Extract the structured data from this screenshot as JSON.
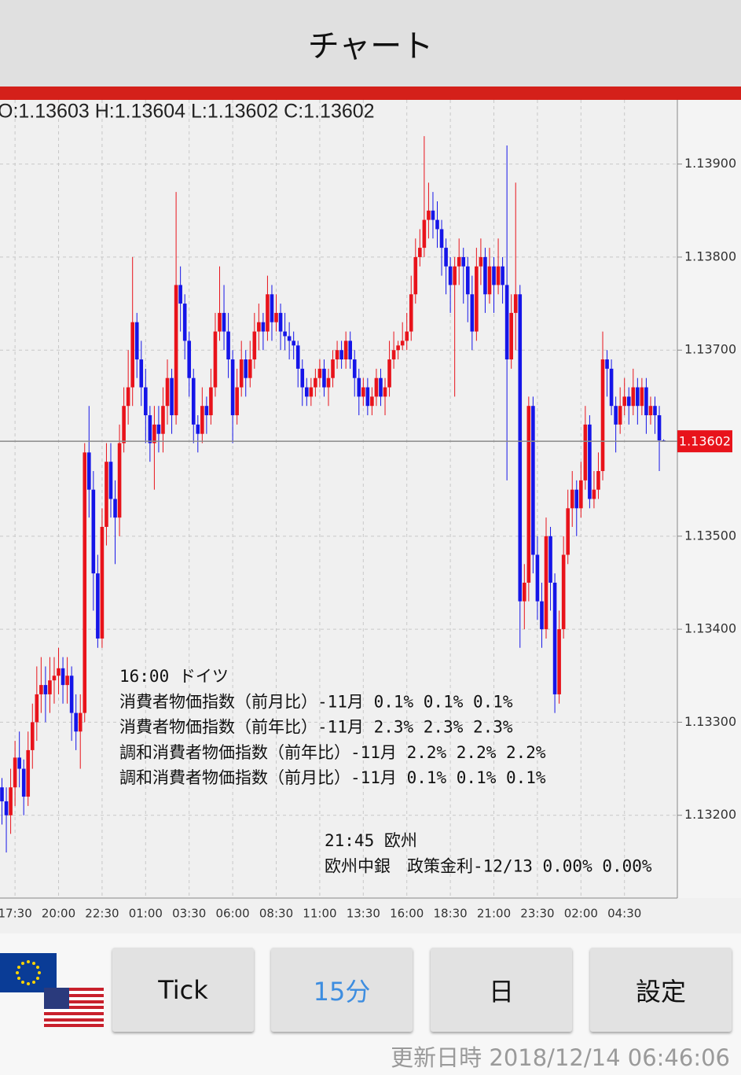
{
  "header": {
    "title": "チャート"
  },
  "chart_data": {
    "type": "candlestick",
    "ohlc_label": "O:1.13603 H:1.13604 L:1.13602 C:1.13602",
    "up_color": "#e8131b",
    "down_color": "#1515e8",
    "ylim": [
      1.13111,
      1.13969
    ],
    "yticks": [
      {
        "value": 1.132,
        "label": "1.13200"
      },
      {
        "value": 1.133,
        "label": "1.13300"
      },
      {
        "value": 1.134,
        "label": "1.13400"
      },
      {
        "value": 1.135,
        "label": "1.13500"
      },
      {
        "value": 1.137,
        "label": "1.13700"
      },
      {
        "value": 1.138,
        "label": "1.13800"
      },
      {
        "value": 1.139,
        "label": "1.13900"
      }
    ],
    "grid": true,
    "current": {
      "value": 1.13602,
      "label": "1.13602"
    },
    "categories": [
      null,
      null,
      null,
      "17:30",
      null,
      null,
      null,
      null,
      null,
      null,
      null,
      null,
      null,
      "20:00",
      null,
      null,
      null,
      null,
      null,
      null,
      null,
      null,
      null,
      "22:30",
      null,
      null,
      null,
      null,
      null,
      null,
      null,
      null,
      null,
      "01:00",
      null,
      null,
      null,
      null,
      null,
      null,
      null,
      null,
      null,
      "03:30",
      null,
      null,
      null,
      null,
      null,
      null,
      null,
      null,
      null,
      "06:00",
      null,
      null,
      null,
      null,
      null,
      null,
      null,
      null,
      null,
      "08:30",
      null,
      null,
      null,
      null,
      null,
      null,
      null,
      null,
      null,
      "11:00",
      null,
      null,
      null,
      null,
      null,
      null,
      null,
      null,
      null,
      "13:30",
      null,
      null,
      null,
      null,
      null,
      null,
      null,
      null,
      null,
      "16:00",
      null,
      null,
      null,
      null,
      null,
      null,
      null,
      null,
      null,
      "18:30",
      null,
      null,
      null,
      null,
      null,
      null,
      null,
      null,
      null,
      "21:00",
      null,
      null,
      null,
      null,
      null,
      null,
      null,
      null,
      null,
      "23:30",
      null,
      null,
      null,
      null,
      null,
      null,
      null,
      null,
      null,
      "02:00",
      null,
      null,
      null,
      null,
      null,
      null,
      null,
      null,
      null,
      "04:30",
      null,
      null,
      null,
      null,
      null,
      null,
      null,
      null,
      null
    ],
    "candles": [
      [
        1.1323,
        1.1324,
        1.1319,
        1.13215
      ],
      [
        1.13215,
        1.1323,
        1.1316,
        1.132
      ],
      [
        1.132,
        1.1325,
        1.1318,
        1.1323
      ],
      [
        1.1323,
        1.1328,
        1.1321,
        1.13262
      ],
      [
        1.13262,
        1.1329,
        1.1323,
        1.1325
      ],
      [
        1.1325,
        1.1326,
        1.132,
        1.1322
      ],
      [
        1.1322,
        1.1329,
        1.1321,
        1.1327
      ],
      [
        1.1327,
        1.1332,
        1.1325,
        1.133
      ],
      [
        1.133,
        1.1336,
        1.1328,
        1.1333
      ],
      [
        1.1333,
        1.1337,
        1.1331,
        1.1334
      ],
      [
        1.1334,
        1.1336,
        1.133,
        1.1333
      ],
      [
        1.1333,
        1.1337,
        1.1331,
        1.13345
      ],
      [
        1.13345,
        1.1337,
        1.1332,
        1.1335
      ],
      [
        1.1335,
        1.1338,
        1.1333,
        1.13358
      ],
      [
        1.13358,
        1.1337,
        1.1332,
        1.1334
      ],
      [
        1.1334,
        1.1337,
        1.1332,
        1.1335
      ],
      [
        1.1335,
        1.1336,
        1.1328,
        1.1331
      ],
      [
        1.1331,
        1.1333,
        1.1327,
        1.1329
      ],
      [
        1.1329,
        1.1333,
        1.1325,
        1.1331
      ],
      [
        1.1331,
        1.136,
        1.133,
        1.1359
      ],
      [
        1.1359,
        1.1364,
        1.1352,
        1.1355
      ],
      [
        1.1355,
        1.1357,
        1.1342,
        1.1346
      ],
      [
        1.1346,
        1.1348,
        1.1338,
        1.1339
      ],
      [
        1.1339,
        1.1353,
        1.1338,
        1.1351
      ],
      [
        1.1351,
        1.136,
        1.1349,
        1.1358
      ],
      [
        1.1358,
        1.136,
        1.1352,
        1.1354
      ],
      [
        1.1354,
        1.1356,
        1.1347,
        1.1352
      ],
      [
        1.1352,
        1.1362,
        1.135,
        1.136
      ],
      [
        1.136,
        1.1366,
        1.1359,
        1.1364
      ],
      [
        1.1364,
        1.137,
        1.1362,
        1.1366
      ],
      [
        1.1366,
        1.138,
        1.1364,
        1.1373
      ],
      [
        1.1373,
        1.1374,
        1.1367,
        1.1369
      ],
      [
        1.1369,
        1.1371,
        1.1364,
        1.1366
      ],
      [
        1.1366,
        1.1368,
        1.136,
        1.1363
      ],
      [
        1.1363,
        1.1364,
        1.1358,
        1.136
      ],
      [
        1.136,
        1.1364,
        1.1355,
        1.1362
      ],
      [
        1.1362,
        1.1364,
        1.1359,
        1.1361
      ],
      [
        1.1361,
        1.1366,
        1.1359,
        1.1364
      ],
      [
        1.1364,
        1.1369,
        1.1362,
        1.1367
      ],
      [
        1.1367,
        1.1368,
        1.1361,
        1.1363
      ],
      [
        1.1363,
        1.1387,
        1.1362,
        1.1377
      ],
      [
        1.1377,
        1.1379,
        1.1372,
        1.1375
      ],
      [
        1.1375,
        1.1376,
        1.1369,
        1.1371
      ],
      [
        1.1371,
        1.1372,
        1.1365,
        1.1367
      ],
      [
        1.1367,
        1.1368,
        1.136,
        1.1362
      ],
      [
        1.1362,
        1.1363,
        1.1359,
        1.1361
      ],
      [
        1.1361,
        1.1366,
        1.136,
        1.1364
      ],
      [
        1.1364,
        1.1365,
        1.1361,
        1.1363
      ],
      [
        1.1363,
        1.1368,
        1.1362,
        1.1366
      ],
      [
        1.1366,
        1.1374,
        1.1365,
        1.1372
      ],
      [
        1.1372,
        1.1379,
        1.1371,
        1.1374
      ],
      [
        1.1374,
        1.1377,
        1.137,
        1.1372
      ],
      [
        1.1372,
        1.1374,
        1.1367,
        1.1369
      ],
      [
        1.1369,
        1.137,
        1.136,
        1.1363
      ],
      [
        1.1363,
        1.1368,
        1.1362,
        1.1366
      ],
      [
        1.1366,
        1.1371,
        1.1365,
        1.1369
      ],
      [
        1.1369,
        1.137,
        1.1365,
        1.1367
      ],
      [
        1.1367,
        1.1371,
        1.1366,
        1.1369
      ],
      [
        1.1369,
        1.1374,
        1.1368,
        1.1372
      ],
      [
        1.1372,
        1.1375,
        1.137,
        1.1373
      ],
      [
        1.1373,
        1.1374,
        1.137,
        1.1372
      ],
      [
        1.1372,
        1.1378,
        1.1371,
        1.1376
      ],
      [
        1.1376,
        1.1377,
        1.1371,
        1.1373
      ],
      [
        1.1373,
        1.1376,
        1.1372,
        1.1374
      ],
      [
        1.1374,
        1.1375,
        1.137,
        1.1372
      ],
      [
        1.1372,
        1.1374,
        1.137,
        1.13715
      ],
      [
        1.13715,
        1.1373,
        1.1369,
        1.1371
      ],
      [
        1.1371,
        1.1372,
        1.1369,
        1.13705
      ],
      [
        1.13705,
        1.1371,
        1.1366,
        1.1368
      ],
      [
        1.1368,
        1.1369,
        1.1364,
        1.1366
      ],
      [
        1.1366,
        1.1367,
        1.1364,
        1.1365
      ],
      [
        1.1365,
        1.1367,
        1.1364,
        1.1366
      ],
      [
        1.1366,
        1.1368,
        1.1365,
        1.1367
      ],
      [
        1.1367,
        1.1369,
        1.1366,
        1.1368
      ],
      [
        1.1368,
        1.1369,
        1.1365,
        1.1366
      ],
      [
        1.1366,
        1.1368,
        1.1364,
        1.1367
      ],
      [
        1.1367,
        1.137,
        1.1366,
        1.1369
      ],
      [
        1.1369,
        1.1371,
        1.1368,
        1.137
      ],
      [
        1.137,
        1.1371,
        1.1368,
        1.1369
      ],
      [
        1.1369,
        1.1372,
        1.1368,
        1.1371
      ],
      [
        1.1371,
        1.1372,
        1.1368,
        1.1369
      ],
      [
        1.1369,
        1.137,
        1.1365,
        1.1367
      ],
      [
        1.1367,
        1.1368,
        1.1363,
        1.1365
      ],
      [
        1.1365,
        1.1367,
        1.1364,
        1.1366
      ],
      [
        1.1366,
        1.1367,
        1.1363,
        1.1364
      ],
      [
        1.1364,
        1.1366,
        1.1363,
        1.1365
      ],
      [
        1.1365,
        1.1368,
        1.1364,
        1.1367
      ],
      [
        1.1367,
        1.1368,
        1.1364,
        1.1365
      ],
      [
        1.1365,
        1.1367,
        1.1363,
        1.1366
      ],
      [
        1.1366,
        1.1371,
        1.1365,
        1.1369
      ],
      [
        1.1369,
        1.1372,
        1.1368,
        1.137
      ],
      [
        1.137,
        1.1371,
        1.1369,
        1.13705
      ],
      [
        1.13705,
        1.1373,
        1.137,
        1.1371
      ],
      [
        1.1371,
        1.1374,
        1.137,
        1.1372
      ],
      [
        1.1372,
        1.1378,
        1.1371,
        1.1376
      ],
      [
        1.1376,
        1.1382,
        1.1375,
        1.138
      ],
      [
        1.138,
        1.1383,
        1.1379,
        1.1381
      ],
      [
        1.1381,
        1.1393,
        1.138,
        1.1384
      ],
      [
        1.1384,
        1.1388,
        1.1382,
        1.1385
      ],
      [
        1.1385,
        1.1387,
        1.1382,
        1.1384
      ],
      [
        1.1384,
        1.1386,
        1.1381,
        1.1383
      ],
      [
        1.1383,
        1.1384,
        1.1378,
        1.1381
      ],
      [
        1.1381,
        1.1382,
        1.1376,
        1.1379
      ],
      [
        1.1379,
        1.138,
        1.1374,
        1.1377
      ],
      [
        1.1377,
        1.138,
        1.1365,
        1.1379
      ],
      [
        1.1379,
        1.1382,
        1.1377,
        1.138
      ],
      [
        1.138,
        1.1381,
        1.1375,
        1.1379
      ],
      [
        1.1379,
        1.138,
        1.1373,
        1.1376
      ],
      [
        1.1376,
        1.1378,
        1.137,
        1.1372
      ],
      [
        1.1372,
        1.1381,
        1.1371,
        1.1379
      ],
      [
        1.1379,
        1.1382,
        1.1377,
        1.138
      ],
      [
        1.138,
        1.1381,
        1.1374,
        1.1376
      ],
      [
        1.1376,
        1.1381,
        1.1375,
        1.1379
      ],
      [
        1.1379,
        1.138,
        1.1374,
        1.1377
      ],
      [
        1.1377,
        1.1382,
        1.1376,
        1.1379
      ],
      [
        1.1379,
        1.138,
        1.1375,
        1.1377
      ],
      [
        1.1377,
        1.1392,
        1.1356,
        1.1369
      ],
      [
        1.1369,
        1.1376,
        1.1368,
        1.1374
      ],
      [
        1.1374,
        1.1388,
        1.137,
        1.1376
      ],
      [
        1.1376,
        1.1377,
        1.1338,
        1.1343
      ],
      [
        1.1343,
        1.1347,
        1.134,
        1.1345
      ],
      [
        1.1345,
        1.1365,
        1.1343,
        1.1364
      ],
      [
        1.1364,
        1.1365,
        1.1346,
        1.1348
      ],
      [
        1.1348,
        1.135,
        1.1341,
        1.1343
      ],
      [
        1.1343,
        1.1345,
        1.1338,
        1.134
      ],
      [
        1.134,
        1.1352,
        1.1339,
        1.135
      ],
      [
        1.135,
        1.1351,
        1.1342,
        1.1345
      ],
      [
        1.1345,
        1.1346,
        1.1331,
        1.1333
      ],
      [
        1.1333,
        1.1342,
        1.1332,
        1.134
      ],
      [
        1.134,
        1.135,
        1.1339,
        1.1348
      ],
      [
        1.1348,
        1.1355,
        1.1347,
        1.1353
      ],
      [
        1.1353,
        1.1357,
        1.1351,
        1.1355
      ],
      [
        1.1355,
        1.1356,
        1.135,
        1.1353
      ],
      [
        1.1353,
        1.1358,
        1.1352,
        1.1356
      ],
      [
        1.1356,
        1.1364,
        1.1355,
        1.1362
      ],
      [
        1.1362,
        1.1363,
        1.1353,
        1.1354
      ],
      [
        1.1354,
        1.1357,
        1.1353,
        1.1355
      ],
      [
        1.1355,
        1.1359,
        1.1354,
        1.1357
      ],
      [
        1.1357,
        1.1372,
        1.1356,
        1.1369
      ],
      [
        1.1369,
        1.137,
        1.1365,
        1.1368
      ],
      [
        1.1368,
        1.1369,
        1.1363,
        1.1364
      ],
      [
        1.1364,
        1.1365,
        1.1359,
        1.1362
      ],
      [
        1.1362,
        1.1366,
        1.1361,
        1.1364
      ],
      [
        1.1364,
        1.1367,
        1.1363,
        1.1365
      ],
      [
        1.1365,
        1.1366,
        1.1362,
        1.1364
      ],
      [
        1.1364,
        1.1368,
        1.1363,
        1.1366
      ],
      [
        1.1366,
        1.1367,
        1.1362,
        1.1364
      ],
      [
        1.1364,
        1.1367,
        1.1363,
        1.1366
      ],
      [
        1.1366,
        1.1367,
        1.1361,
        1.1363
      ],
      [
        1.1363,
        1.1365,
        1.1362,
        1.1364
      ],
      [
        1.1364,
        1.1365,
        1.1361,
        1.1363
      ],
      [
        1.1363,
        1.1364,
        1.1357,
        1.13603
      ],
      [
        1.13603,
        1.13604,
        1.13602,
        1.13602
      ]
    ],
    "annotations": [
      {
        "lines": [
          "16:00 ドイツ",
          "消費者物価指数（前月比）-11月 0.1% 0.1% 0.1%",
          "消費者物価指数（前年比）-11月 2.3% 2.3% 2.3%",
          "調和消費者物価指数（前年比）-11月 2.2% 2.2% 2.2%",
          "調和消費者物価指数（前月比）-11月 0.1% 0.1% 0.1%"
        ]
      },
      {
        "lines": [
          "21:45 欧州",
          "欧州中銀　政策金利-12/13 0.00% 0.00%"
        ]
      }
    ]
  },
  "buttons": [
    {
      "label": "Tick",
      "selected": false
    },
    {
      "label": "15分",
      "selected": true
    },
    {
      "label": "日",
      "selected": false
    },
    {
      "label": "設定",
      "selected": false
    }
  ],
  "updated": "更新日時 2018/12/14 06:46:06"
}
